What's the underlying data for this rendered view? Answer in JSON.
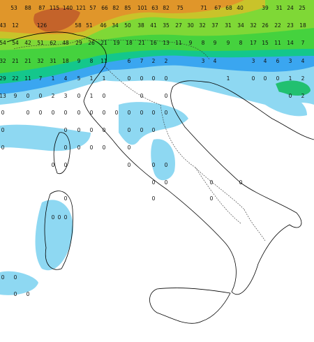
{
  "map": {
    "rows": [
      [
        53,
        88,
        87,
        115,
        140,
        121,
        57,
        66,
        82,
        85,
        101,
        63,
        82,
        75,
        71,
        67,
        68,
        40,
        39,
        31,
        24,
        25
      ],
      [
        43,
        12,
        126,
        58,
        51,
        46,
        34,
        50,
        38,
        41,
        35,
        27,
        30,
        32,
        37,
        31,
        34,
        32,
        26,
        22,
        23,
        18
      ],
      [
        54,
        54,
        42,
        51,
        62,
        48,
        29,
        26,
        21,
        19,
        18,
        21,
        16,
        13,
        11,
        9,
        8,
        9,
        9,
        8,
        17,
        15,
        11,
        14,
        7
      ],
      [
        32,
        21,
        21,
        32,
        31,
        18,
        9,
        8,
        11,
        6,
        7,
        2,
        2,
        3,
        4,
        3,
        4,
        6,
        3,
        4
      ],
      [
        29,
        22,
        11,
        7,
        1,
        4,
        5,
        1,
        1,
        0,
        0,
        0,
        0,
        1,
        0,
        0,
        0,
        1,
        2
      ],
      [
        13,
        9,
        0,
        0,
        2,
        3,
        0,
        1,
        0,
        0,
        0,
        0,
        2
      ],
      [
        0,
        0,
        0,
        0,
        0,
        0,
        0,
        0,
        0,
        0,
        0,
        0,
        0
      ],
      [
        0,
        0,
        0,
        0,
        0,
        0,
        0,
        0
      ],
      [
        0,
        0,
        0,
        0,
        0,
        0
      ],
      [
        0,
        0,
        0,
        0,
        0
      ],
      [
        0,
        0,
        0,
        0
      ],
      [
        0,
        0,
        0
      ],
      [
        0,
        0,
        0
      ],
      [
        0,
        0,
        0,
        0
      ]
    ]
  }
}
